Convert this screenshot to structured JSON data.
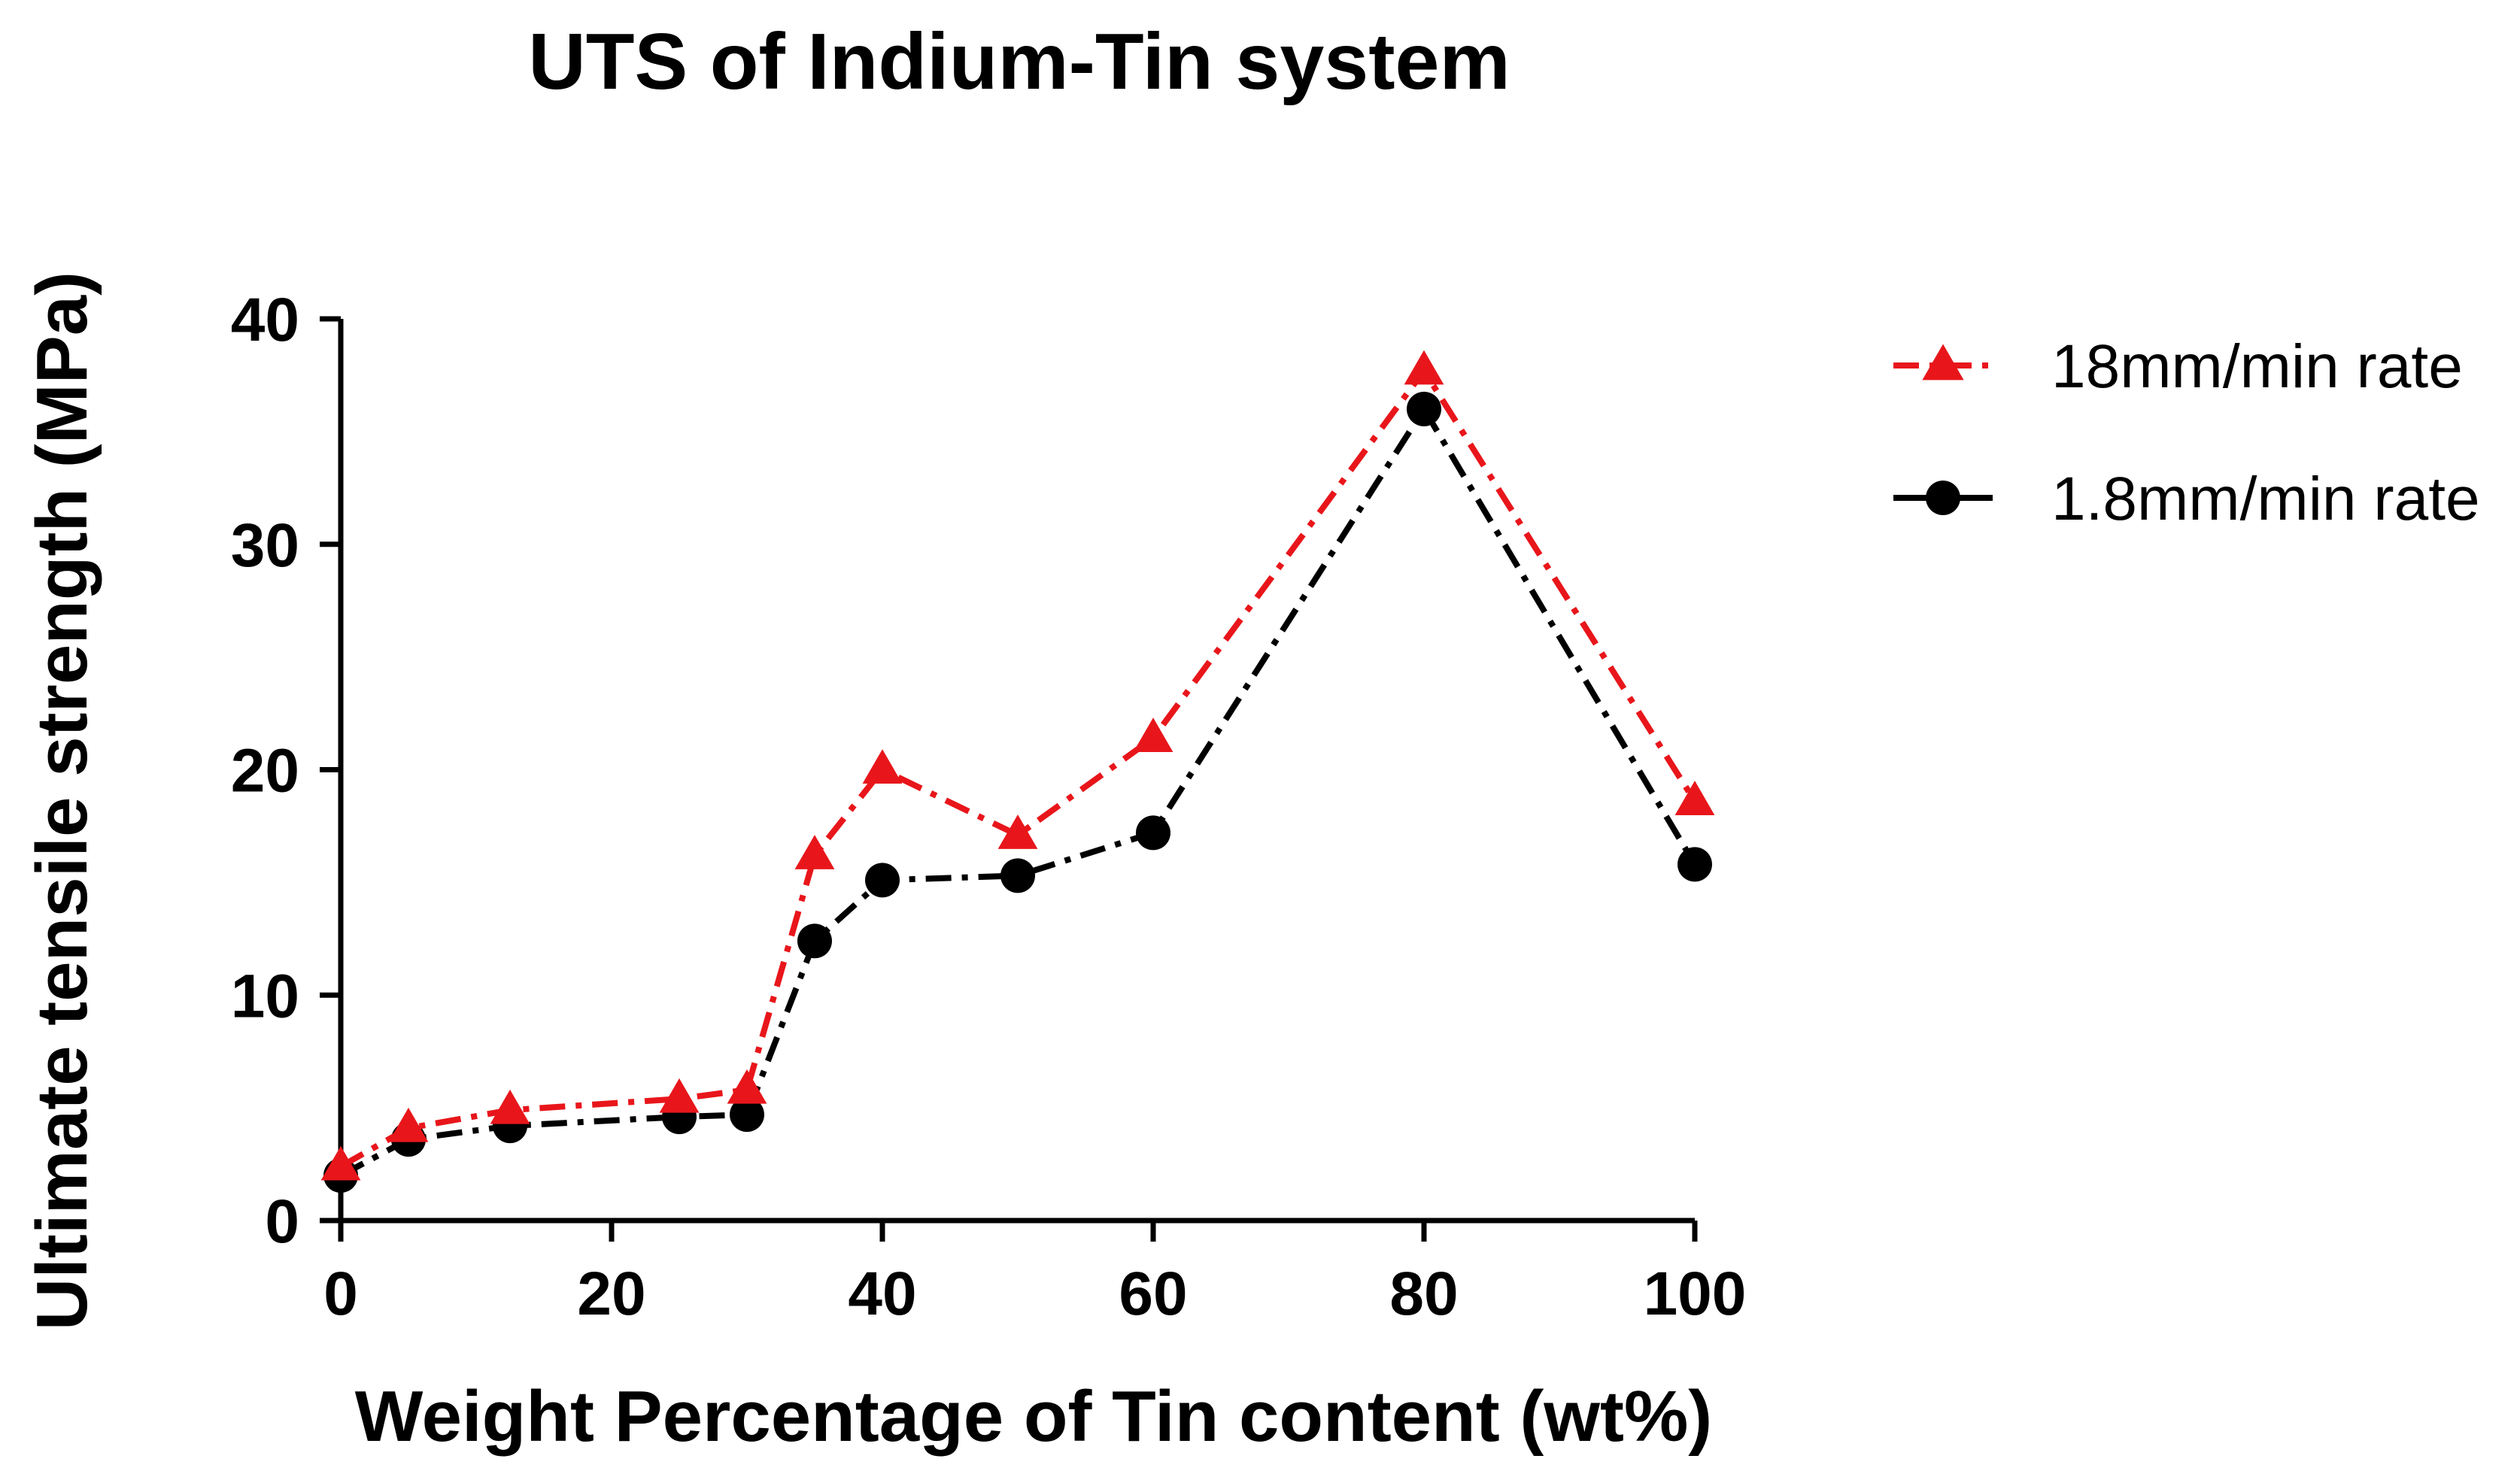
{
  "chart_data": {
    "type": "line",
    "title": "UTS of Indium-Tin system",
    "xlabel": "Weight Percentage of Tin content (wt%)",
    "ylabel": "Ultimate tensile strength (MPa)",
    "xlim": [
      0,
      100
    ],
    "ylim": [
      0,
      40
    ],
    "x_ticks": [
      0,
      20,
      40,
      60,
      80,
      100
    ],
    "y_ticks": [
      0,
      10,
      20,
      30,
      40
    ],
    "grid": false,
    "legend_position": "top-right, outside plot",
    "series": [
      {
        "name": "18mm/min rate",
        "color": "#e8161b",
        "marker": "triangle",
        "line_style": "dash-dot",
        "x": [
          0,
          5,
          12.5,
          25,
          30,
          35,
          40,
          50,
          60,
          80,
          100
        ],
        "y": [
          2.4,
          4.1,
          4.9,
          5.4,
          5.8,
          16.2,
          20.0,
          17.1,
          21.4,
          37.7,
          18.6
        ]
      },
      {
        "name": "1.8mm/min rate",
        "color": "#000000",
        "marker": "circle",
        "line_style": "dash-dot",
        "x": [
          0,
          5,
          12.5,
          25,
          30,
          35,
          40,
          50,
          60,
          80,
          100
        ],
        "y": [
          2.0,
          3.6,
          4.2,
          4.6,
          4.7,
          12.4,
          15.1,
          15.3,
          17.2,
          36.0,
          15.8
        ]
      }
    ]
  }
}
